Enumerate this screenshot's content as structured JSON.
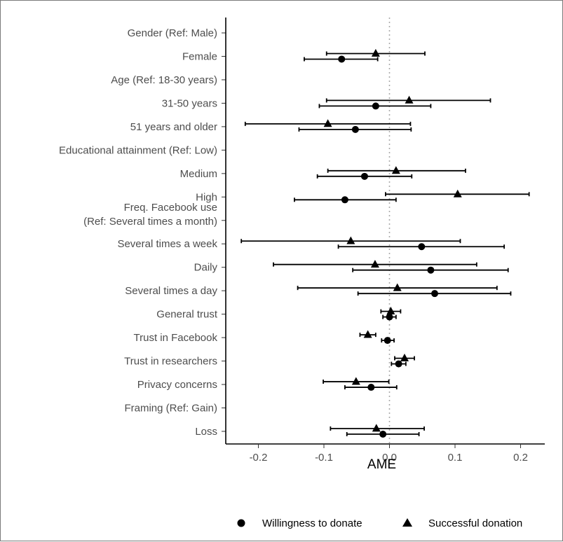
{
  "chart_data": {
    "type": "scatter",
    "subtype": "coefficient-plot-horizontal",
    "xlabel": "AME",
    "xlim": [
      -0.24,
      0.23
    ],
    "xticks": [
      -0.2,
      -0.1,
      0.0,
      0.1,
      0.2
    ],
    "xtick_labels": [
      "-0.2",
      "-0.1",
      "0.0",
      "0.1",
      "0.2"
    ],
    "reference_line": 0.0,
    "grid": false,
    "legend_position": "bottom",
    "categories": [
      "Gender (Ref: Male)",
      "Female",
      "Age (Ref: 18-30 years)",
      "31-50 years",
      "51 years and older",
      "Educational attainment (Ref: Low)",
      "Medium",
      "High",
      [
        "Freq. Facebook use",
        "(Ref: Several times a month)"
      ],
      "Several times a week",
      "Daily",
      "Several times a day",
      "General trust",
      "Trust in Facebook",
      "Trust in researchers",
      "Privacy concerns",
      "Framing (Ref: Gain)",
      "Loss"
    ],
    "series": [
      {
        "name": "Willingness to donate",
        "marker": "circle",
        "color": "#000000",
        "values": [
          null,
          -0.073,
          null,
          -0.021,
          -0.052,
          null,
          -0.038,
          -0.068,
          null,
          0.049,
          0.063,
          0.069,
          0.0,
          -0.003,
          0.014,
          -0.028,
          null,
          -0.01
        ],
        "ci_low": [
          null,
          -0.13,
          null,
          -0.107,
          -0.138,
          null,
          -0.11,
          -0.145,
          null,
          -0.078,
          -0.056,
          -0.048,
          -0.01,
          -0.012,
          0.003,
          -0.068,
          null,
          -0.065
        ],
        "ci_high": [
          null,
          -0.018,
          null,
          0.063,
          0.033,
          null,
          0.034,
          0.01,
          null,
          0.175,
          0.181,
          0.185,
          0.01,
          0.007,
          0.025,
          0.011,
          null,
          0.045
        ]
      },
      {
        "name": "Successful donation",
        "marker": "triangle",
        "color": "#000000",
        "values": [
          null,
          -0.021,
          null,
          0.03,
          -0.094,
          null,
          0.01,
          0.104,
          null,
          -0.059,
          -0.022,
          0.012,
          0.002,
          -0.033,
          0.023,
          -0.051,
          null,
          -0.02
        ],
        "ci_low": [
          null,
          -0.096,
          null,
          -0.096,
          -0.22,
          null,
          -0.094,
          -0.006,
          null,
          -0.226,
          -0.177,
          -0.14,
          -0.013,
          -0.045,
          0.008,
          -0.101,
          null,
          -0.09
        ],
        "ci_high": [
          null,
          0.054,
          null,
          0.154,
          0.032,
          null,
          0.116,
          0.213,
          null,
          0.108,
          0.133,
          0.164,
          0.017,
          -0.021,
          0.038,
          -0.001,
          null,
          0.053
        ]
      }
    ]
  }
}
